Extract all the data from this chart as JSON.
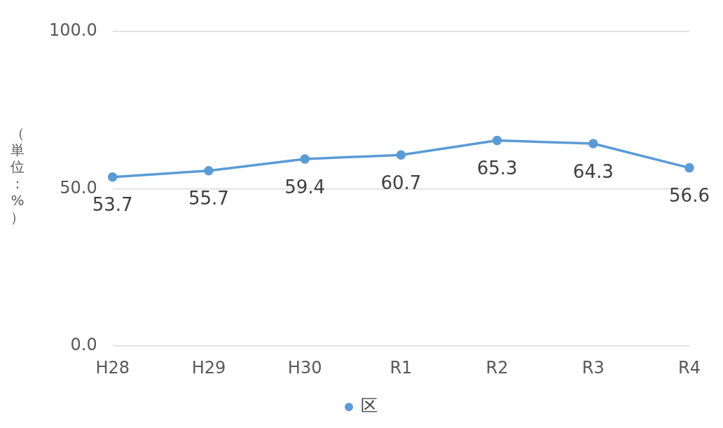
{
  "chart_data": {
    "type": "line",
    "ylabel": "（単位：%）",
    "categories": [
      "H28",
      "H29",
      "H30",
      "R1",
      "R2",
      "R3",
      "R4"
    ],
    "series": [
      {
        "name": "区",
        "color": "#5b9bd5",
        "values": [
          53.7,
          55.7,
          59.4,
          60.7,
          65.3,
          64.3,
          56.6
        ]
      }
    ],
    "ylim": [
      0,
      100
    ],
    "yticks": [
      {
        "value": 0,
        "label": "0.0"
      },
      {
        "value": 50,
        "label": "50.0"
      },
      {
        "value": 100,
        "label": "100.0"
      }
    ],
    "grid": "y",
    "legend": "bottom",
    "marker": "circle",
    "line_style": "solid",
    "data_labels": true
  }
}
